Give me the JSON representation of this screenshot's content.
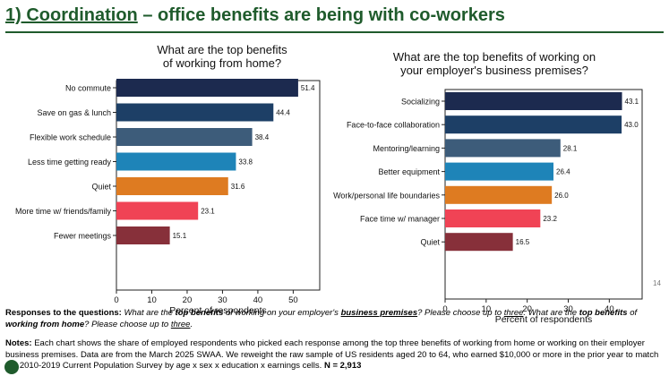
{
  "headline": {
    "prefix": "1) Coordination",
    "rest": " – office benefits are being with co-workers"
  },
  "page_number": "14",
  "responses": {
    "label": "Responses to the questions:",
    "q1_a": "What are the",
    "q1_b": "top benefits",
    "q1_c": "of working on your employer's",
    "q1_d": "business premises",
    "q1_e": "? Please choose up to",
    "q1_f": "three",
    "q1_g": ". What are the",
    "q2_a": "top benefits",
    "q2_b": "of",
    "q2_c": "working from home",
    "q2_d": "? Please choose up to",
    "q2_e": "three",
    "q2_f": "."
  },
  "notes": {
    "label": "Notes:",
    "text": "Each chart shows the share of employed respondents who picked each response among the top three benefits of working from home or working on their employer business premises. Data are from the March 2025 SWAA. We reweight the raw sample of US residents aged 20 to 64, who earned $10,000 or more in the prior year to match the 2010-2019 Current Population Survey by age x sex x education x earnings cells.",
    "n": "N = 2,913"
  },
  "chart_data": [
    {
      "type": "bar",
      "orientation": "horizontal",
      "title": [
        "What are the top benefits",
        "of working from home?"
      ],
      "categories": [
        "No commute",
        "Save on gas & lunch",
        "Flexible work schedule",
        "Less time getting ready",
        "Quiet",
        "More time w/ friends/family",
        "Fewer meetings"
      ],
      "values": [
        51.4,
        44.4,
        38.4,
        33.8,
        31.6,
        23.1,
        15.1
      ],
      "value_labels": [
        "51.4",
        "44.4",
        "38.4",
        "33.8",
        "31.6",
        "23.1",
        "15.1"
      ],
      "colors": [
        "#1c2a4f",
        "#1d3f66",
        "#3d5c7a",
        "#1e84b8",
        "#de7b21",
        "#f04355",
        "#87303a"
      ],
      "xlim": [
        0,
        57.5
      ],
      "xticks": [
        "0",
        "10",
        "20",
        "30",
        "40",
        "50"
      ],
      "tick_values": [
        0,
        10,
        20,
        30,
        40,
        50
      ],
      "xlabel": "Percent of respondents",
      "grid": false
    },
    {
      "type": "bar",
      "orientation": "horizontal",
      "title": [
        "What are the top benefits of working on",
        "your employer's business premises?"
      ],
      "categories": [
        "Socializing",
        "Face-to-face collaboration",
        "Mentoring/learning",
        "Better equipment",
        "Work/personal life boundaries",
        "Face time w/ manager",
        "Quiet"
      ],
      "values": [
        43.1,
        43.0,
        28.1,
        26.4,
        26.0,
        23.2,
        16.5
      ],
      "value_labels": [
        "43.1",
        "43.0",
        "28.1",
        "26.4",
        "26.0",
        "23.2",
        "16.5"
      ],
      "colors": [
        "#1c2a4f",
        "#1d3f66",
        "#3d5c7a",
        "#1e84b8",
        "#de7b21",
        "#f04355",
        "#87303a"
      ],
      "xlim": [
        0,
        48
      ],
      "xticks": [
        "0",
        "10",
        "20",
        "30",
        "40"
      ],
      "tick_values": [
        0,
        10,
        20,
        30,
        40
      ],
      "xlabel": "Percent of respondents",
      "grid": false
    }
  ]
}
